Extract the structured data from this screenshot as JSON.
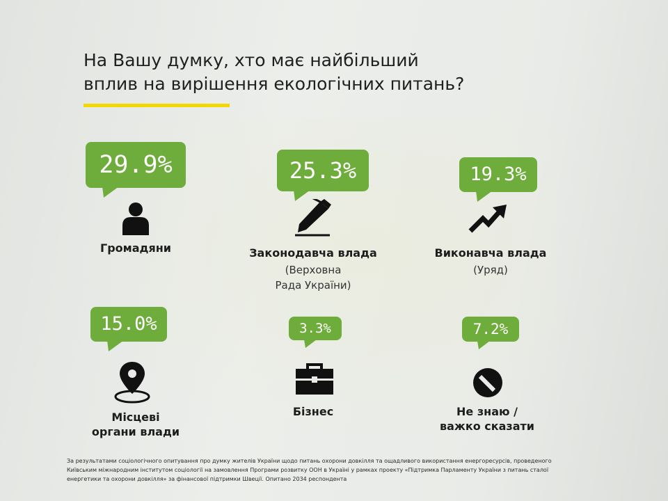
{
  "title_line1": "На Вашу думку, хто має найбільший",
  "title_line2": "вплив на вирішення екологічних питань?",
  "chart_data": {
    "type": "bar",
    "title": "На Вашу думку, хто має найбільший вплив на вирішення екологічних питань?",
    "categories": [
      "Громадяни",
      "Законодавча влада (Верховна Рада України)",
      "Виконавча влада (Уряд)",
      "Місцеві органи влади",
      "Бізнес",
      "Не знаю / важко сказати"
    ],
    "values": [
      29.9,
      25.3,
      19.3,
      15.0,
      3.3,
      7.2
    ],
    "unit": "%"
  },
  "items": [
    {
      "value": "29.9%",
      "label": "Громадяни",
      "icon": "person-icon"
    },
    {
      "value": "25.3%",
      "label": "Законодавча влада",
      "sub1": "(Верховна",
      "sub2": "Рада України)",
      "icon": "pen-icon"
    },
    {
      "value": "19.3%",
      "label": "Виконавча влада",
      "sub1": "(Уряд)",
      "icon": "trend-arrow-icon"
    },
    {
      "value": "15.0%",
      "label1": "Місцеві",
      "label2": "органи влади",
      "icon": "map-pin-icon"
    },
    {
      "value": "3.3%",
      "label": "Бізнес",
      "icon": "briefcase-icon"
    },
    {
      "value": "7.2%",
      "label1": "Не знаю /",
      "label2": "важко сказати",
      "icon": "no-entry-icon"
    }
  ],
  "colors": {
    "accent": "#6eac3b",
    "title_rule": "#f0d800",
    "text": "#1d1d1d"
  },
  "footnote": "За результатами соціологічного опитування про думку жителів України щодо питань охорони довкілля та ощадливого використання енергоресурсів, проведеного Київським міжнародним інститутом соціології на замовлення Програми розвитку ООН в Україні у рамках проекту «Підтримка Парламенту України з питань сталої енергетики та охорони довкілля» за фінансової підтримки Швеції. Опитано 2034 респондента"
}
